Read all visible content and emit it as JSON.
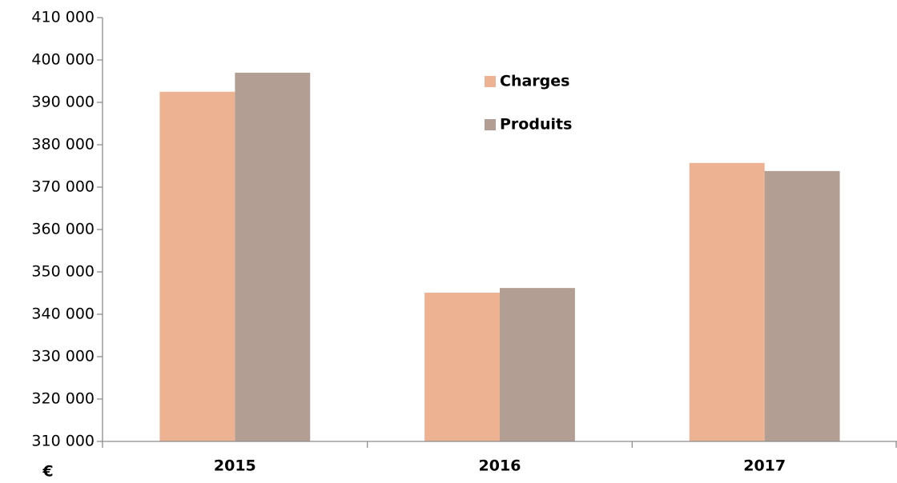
{
  "chart_data": {
    "type": "bar",
    "y_label": "€",
    "categories": [
      "2015",
      "2016",
      "2017"
    ],
    "series": [
      {
        "name": "Charges",
        "color": "#ecb292",
        "values": [
          392500,
          345100,
          375700
        ]
      },
      {
        "name": "Produits",
        "color": "#b39e94",
        "values": [
          397000,
          346200,
          373800
        ]
      }
    ],
    "ylim": [
      310000,
      410000
    ],
    "yticks": [
      {
        "value": 310000,
        "label": "310 000"
      },
      {
        "value": 320000,
        "label": "320 000"
      },
      {
        "value": 330000,
        "label": "330 000"
      },
      {
        "value": 340000,
        "label": "340 000"
      },
      {
        "value": 350000,
        "label": "350 000"
      },
      {
        "value": 360000,
        "label": "360 000"
      },
      {
        "value": 370000,
        "label": "370 000"
      },
      {
        "value": 380000,
        "label": "380 000"
      },
      {
        "value": 390000,
        "label": "390 000"
      },
      {
        "value": 400000,
        "label": "400 000"
      },
      {
        "value": 410000,
        "label": "410 000"
      }
    ],
    "grid": false,
    "legend": "top"
  }
}
